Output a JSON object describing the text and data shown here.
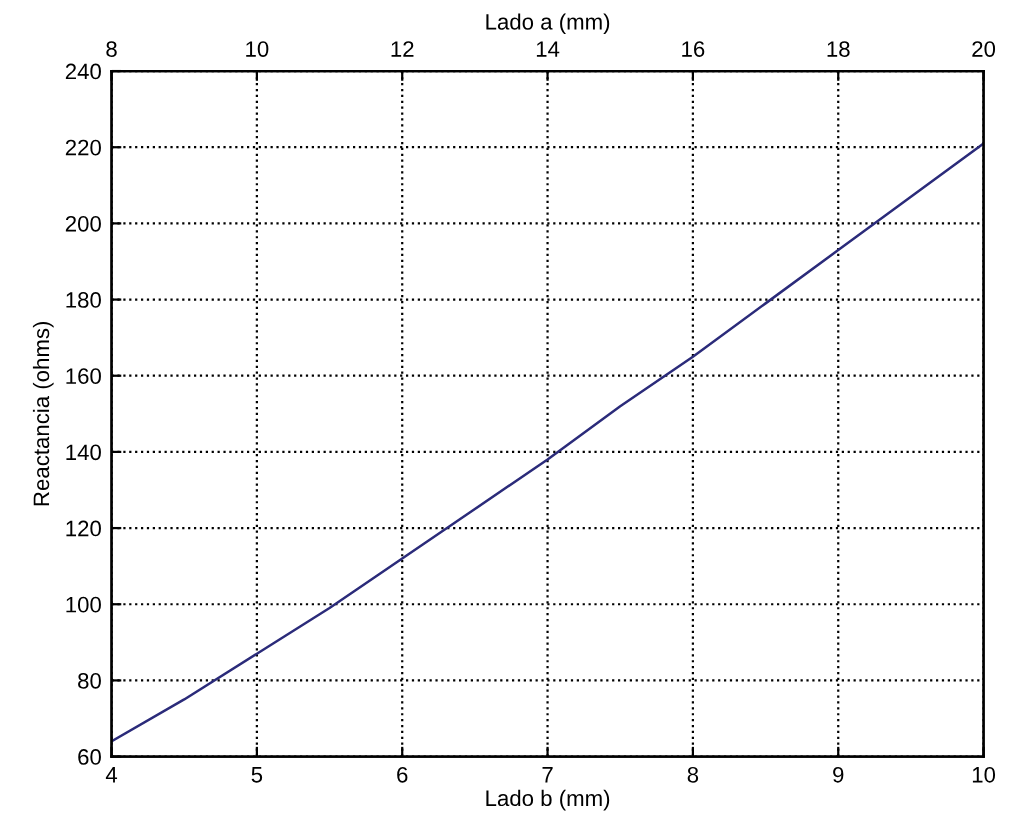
{
  "chart_data": {
    "type": "line",
    "xlabel": "Lado b (mm)",
    "ylabel": "Reactancia (ohms)",
    "x2label": "Lado a (mm)",
    "x": [
      4,
      4.5,
      5,
      5.5,
      6,
      6.5,
      7,
      7.5,
      8,
      8.5,
      9,
      9.5,
      10
    ],
    "series": [
      {
        "color": "#2b2b7a",
        "values": [
          64,
          75,
          87,
          99,
          112,
          125,
          138,
          152,
          165,
          179,
          193,
          207,
          221
        ]
      }
    ],
    "xlim": [
      4,
      10
    ],
    "xticks": [
      4,
      5,
      6,
      7,
      8,
      9,
      10
    ],
    "ylim": [
      60,
      240
    ],
    "yticks": [
      60,
      80,
      100,
      120,
      140,
      160,
      180,
      200,
      220,
      240
    ],
    "x2lim": [
      8,
      20
    ],
    "x2ticks": [
      8,
      10,
      12,
      14,
      16,
      18,
      20
    ],
    "grid": true,
    "line_style": "solid",
    "marker": "none"
  }
}
